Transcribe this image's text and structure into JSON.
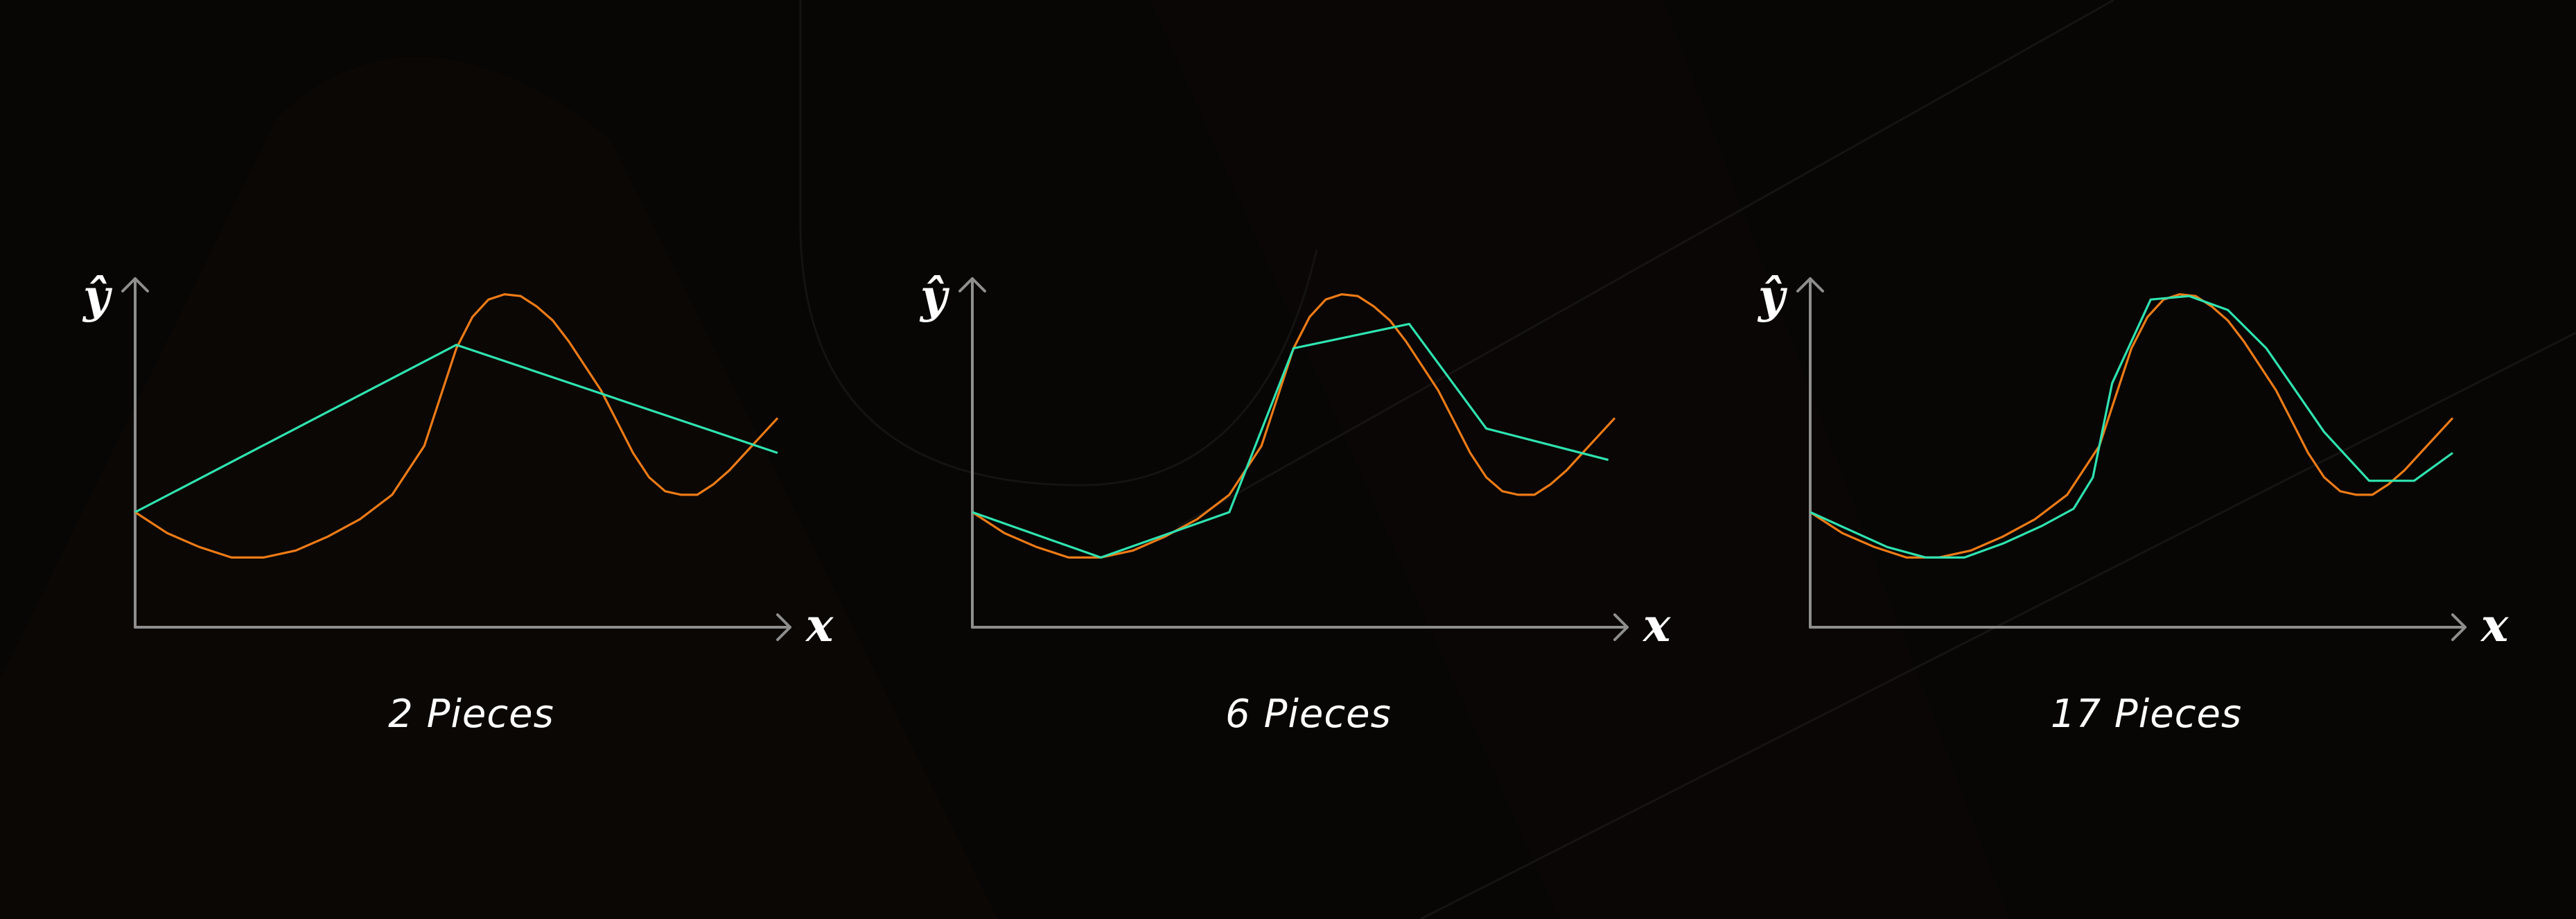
{
  "chart_data": [
    {
      "type": "line",
      "title": "2 Pieces",
      "ylabel": "ŷ",
      "xlabel": "x",
      "xlim": [
        0,
        1
      ],
      "ylim": [
        0,
        1
      ],
      "grid": false,
      "series": [
        {
          "color": "#ee7b16",
          "x": [
            0,
            0.05,
            0.1,
            0.15,
            0.2,
            0.25,
            0.3,
            0.35,
            0.4,
            0.45,
            0.5,
            0.525,
            0.55,
            0.575,
            0.6,
            0.625,
            0.65,
            0.675,
            0.7,
            0.725,
            0.75,
            0.775,
            0.8,
            0.825,
            0.85,
            0.875,
            0.9,
            0.925,
            0.95,
            0.975,
            1.0
          ],
          "y": [
            0.33,
            0.27,
            0.23,
            0.2,
            0.2,
            0.22,
            0.26,
            0.31,
            0.38,
            0.52,
            0.8,
            0.89,
            0.94,
            0.955,
            0.95,
            0.92,
            0.88,
            0.82,
            0.75,
            0.68,
            0.59,
            0.5,
            0.43,
            0.39,
            0.38,
            0.38,
            0.41,
            0.45,
            0.5,
            0.55,
            0.6
          ]
        },
        {
          "color": "#2fe3b0",
          "x": [
            0,
            0.5,
            1.0
          ],
          "y": [
            0.33,
            0.81,
            0.5
          ]
        }
      ]
    },
    {
      "type": "line",
      "title": "6 Pieces",
      "ylabel": "ŷ",
      "xlabel": "x",
      "xlim": [
        0,
        1
      ],
      "ylim": [
        0,
        1
      ],
      "grid": false,
      "series": [
        {
          "color": "#ee7b16",
          "x": [
            0,
            0.05,
            0.1,
            0.15,
            0.2,
            0.25,
            0.3,
            0.35,
            0.4,
            0.45,
            0.5,
            0.525,
            0.55,
            0.575,
            0.6,
            0.625,
            0.65,
            0.675,
            0.7,
            0.725,
            0.75,
            0.775,
            0.8,
            0.825,
            0.85,
            0.875,
            0.9,
            0.925,
            0.95,
            0.975,
            1.0
          ],
          "y": [
            0.33,
            0.27,
            0.23,
            0.2,
            0.2,
            0.22,
            0.26,
            0.31,
            0.38,
            0.52,
            0.8,
            0.89,
            0.94,
            0.955,
            0.95,
            0.92,
            0.88,
            0.82,
            0.75,
            0.68,
            0.59,
            0.5,
            0.43,
            0.39,
            0.38,
            0.38,
            0.41,
            0.45,
            0.5,
            0.55,
            0.6
          ]
        },
        {
          "color": "#2fe3b0",
          "x": [
            0,
            0.2,
            0.4,
            0.5,
            0.68,
            0.8,
            0.99
          ],
          "y": [
            0.33,
            0.2,
            0.33,
            0.8,
            0.87,
            0.57,
            0.48
          ]
        }
      ]
    },
    {
      "type": "line",
      "title": "17 Pieces",
      "ylabel": "ŷ",
      "xlabel": "x",
      "xlim": [
        0,
        1
      ],
      "ylim": [
        0,
        1
      ],
      "grid": false,
      "series": [
        {
          "color": "#ee7b16",
          "x": [
            0,
            0.05,
            0.1,
            0.15,
            0.2,
            0.25,
            0.3,
            0.35,
            0.4,
            0.45,
            0.5,
            0.525,
            0.55,
            0.575,
            0.6,
            0.625,
            0.65,
            0.675,
            0.7,
            0.725,
            0.75,
            0.775,
            0.8,
            0.825,
            0.85,
            0.875,
            0.9,
            0.925,
            0.95,
            0.975,
            1.0
          ],
          "y": [
            0.33,
            0.27,
            0.23,
            0.2,
            0.2,
            0.22,
            0.26,
            0.31,
            0.38,
            0.52,
            0.8,
            0.89,
            0.94,
            0.955,
            0.95,
            0.92,
            0.88,
            0.82,
            0.75,
            0.68,
            0.59,
            0.5,
            0.43,
            0.39,
            0.38,
            0.38,
            0.41,
            0.45,
            0.5,
            0.55,
            0.6
          ]
        },
        {
          "color": "#2fe3b0",
          "x": [
            0,
            0.06,
            0.12,
            0.18,
            0.24,
            0.3,
            0.36,
            0.41,
            0.44,
            0.47,
            0.53,
            0.59,
            0.65,
            0.71,
            0.8,
            0.87,
            0.94,
            1.0
          ],
          "y": [
            0.33,
            0.28,
            0.23,
            0.2,
            0.2,
            0.24,
            0.29,
            0.34,
            0.43,
            0.7,
            0.94,
            0.95,
            0.91,
            0.8,
            0.56,
            0.42,
            0.42,
            0.5
          ]
        }
      ]
    }
  ]
}
